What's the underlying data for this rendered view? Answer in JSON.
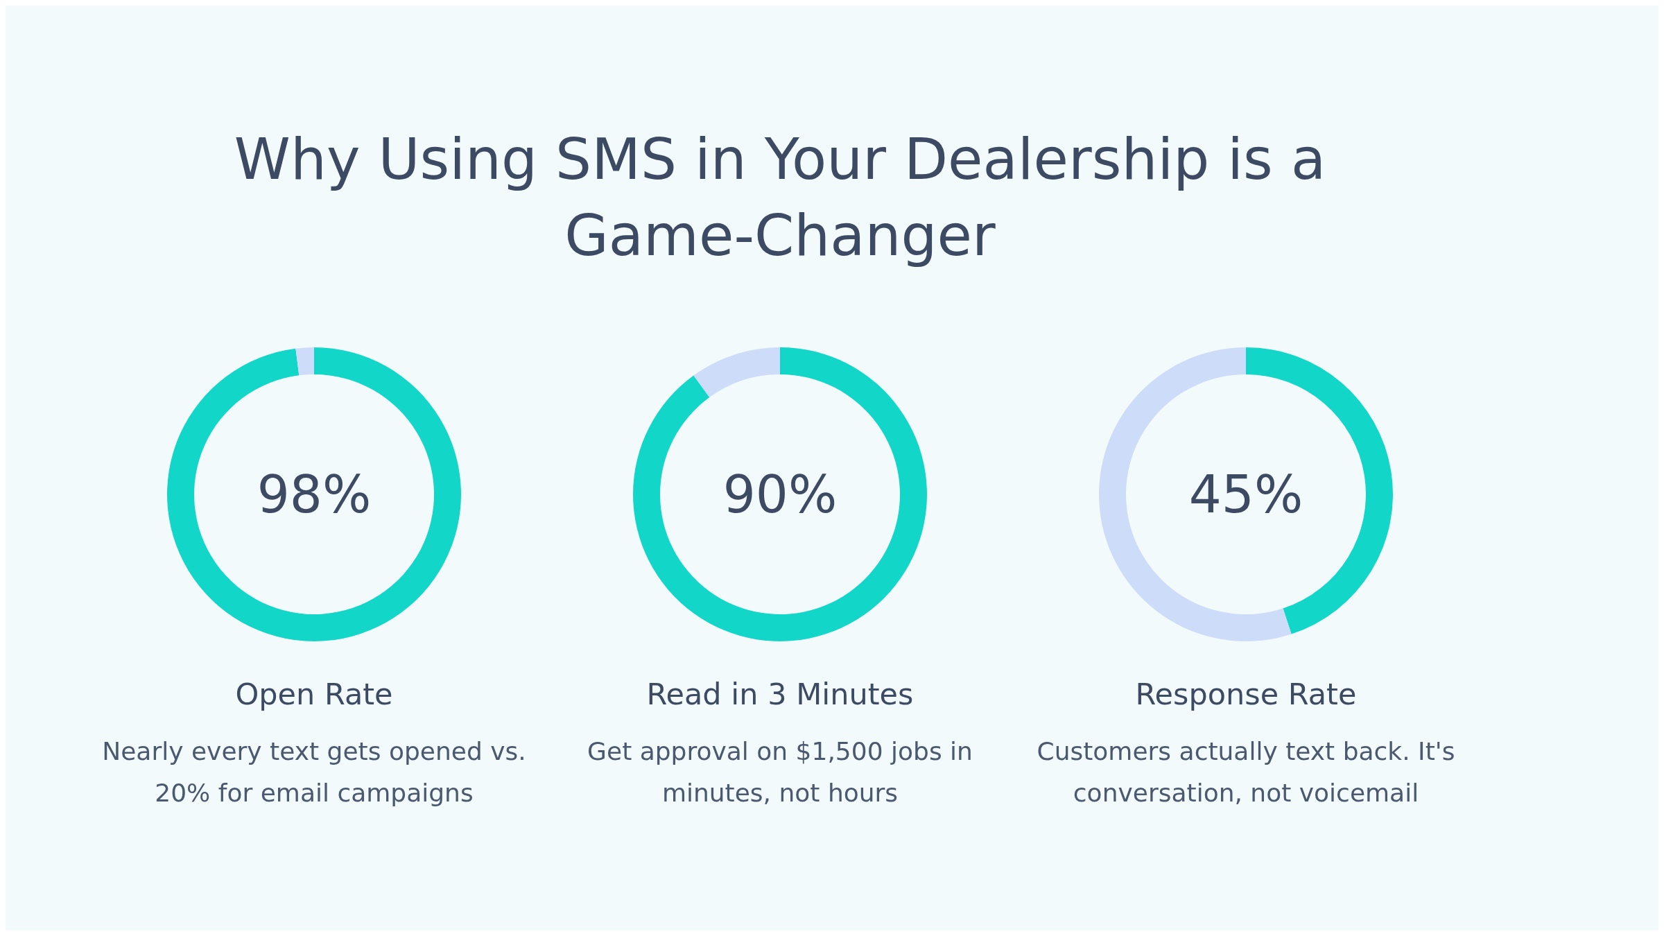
{
  "chart_data": [
    {
      "type": "other",
      "title": "Why Using SMS in Your Dealership is a Game-Changer"
    },
    {
      "type": "donut",
      "title": "Open Rate",
      "subtitle": "Nearly every text gets opened vs. 20% for email campaigns",
      "categories": [
        null,
        null
      ],
      "values": [
        98,
        2
      ],
      "colors": [
        "#12d6c8",
        "#cddcf8"
      ],
      "annotations": [
        "98%"
      ]
    },
    {
      "type": "donut",
      "title": "Read in 3 Minutes",
      "subtitle": "Get approval on $1,500 jobs in minutes, not hours",
      "categories": [
        null,
        null
      ],
      "values": [
        90,
        10
      ],
      "colors": [
        "#12d6c8",
        "#cddcf8"
      ],
      "annotations": [
        "90%"
      ]
    },
    {
      "type": "donut",
      "title": "Response Rate",
      "subtitle": "Customers actually text back. It's conversation, not voicemail",
      "categories": [
        null,
        null
      ],
      "values": [
        45,
        55
      ],
      "colors": [
        "#12d6c8",
        "#cddcf8"
      ],
      "annotations": [
        "45%"
      ]
    }
  ]
}
